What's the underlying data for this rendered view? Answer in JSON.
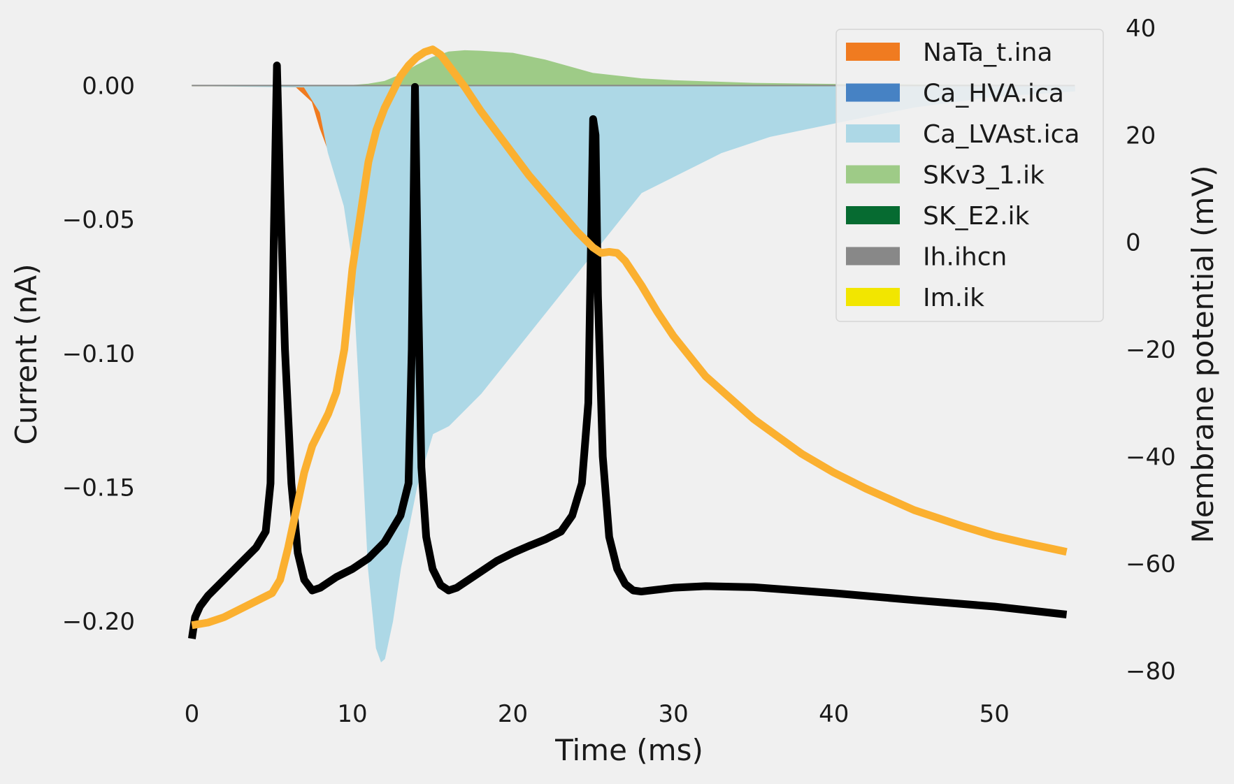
{
  "chart_data": {
    "type": "area",
    "title": "",
    "xlabel": "Time (ms)",
    "ylabel": "Current (nA)",
    "ylabel_right": "Membrane potential (mV)",
    "xlim": [
      -1.5,
      56
    ],
    "ylim": [
      -0.2185,
      0.0215
    ],
    "ylim_right": [
      -80,
      40
    ],
    "x_ticks": [
      "0",
      "10",
      "20",
      "30",
      "40",
      "50"
    ],
    "x_tick_values": [
      0,
      10,
      20,
      30,
      40,
      50
    ],
    "y_ticks": [
      "0.00",
      "−0.05",
      "−0.10",
      "−0.15",
      "−0.20"
    ],
    "y_tick_values": [
      0,
      -0.05,
      -0.1,
      -0.15,
      -0.2
    ],
    "y_right_ticks": [
      "40",
      "20",
      "0",
      "−20",
      "−40",
      "−60",
      "−80"
    ],
    "y_right_tick_values": [
      40,
      20,
      0,
      -20,
      -40,
      -60,
      -80
    ],
    "grid": false,
    "legend_position": "top-right",
    "series": [
      {
        "name": "NaTa_t.ina",
        "kind": "area",
        "color": "#f07b20",
        "x": [
          0,
          5,
          6.5,
          7.5,
          8,
          8.5,
          9,
          10,
          11,
          12,
          13,
          15,
          20,
          30,
          40,
          45,
          50,
          55
        ],
        "y": [
          0,
          0,
          -0.0005,
          -0.006,
          -0.016,
          -0.024,
          -0.02,
          -0.01,
          -0.003,
          -0.0008,
          0,
          0,
          0,
          -0.001,
          -0.002,
          -0.0025,
          -0.001,
          0
        ]
      },
      {
        "name": "Ca_HVA.ica",
        "kind": "area",
        "color": "#4682c4",
        "x": [
          0,
          8,
          12,
          20,
          30,
          40,
          55
        ],
        "y": [
          0,
          0,
          -0.0002,
          -0.0003,
          -0.0002,
          -0.0001,
          0
        ]
      },
      {
        "name": "Ca_LVAst.ica",
        "kind": "area",
        "color": "#add8e6",
        "x": [
          0,
          7,
          8,
          8.5,
          9,
          9.5,
          10,
          10.5,
          11,
          11.5,
          11.8,
          12,
          12.5,
          13,
          14,
          15,
          16,
          18,
          20,
          22,
          24,
          26,
          28,
          30,
          33,
          36,
          40,
          45,
          50,
          55
        ],
        "y": [
          0,
          -0.0005,
          -0.01,
          -0.025,
          -0.035,
          -0.045,
          -0.065,
          -0.12,
          -0.18,
          -0.21,
          -0.215,
          -0.214,
          -0.2,
          -0.18,
          -0.15,
          -0.13,
          -0.127,
          -0.115,
          -0.1,
          -0.085,
          -0.07,
          -0.055,
          -0.04,
          -0.034,
          -0.025,
          -0.019,
          -0.014,
          -0.008,
          -0.004,
          -0.002
        ]
      },
      {
        "name": "SKv3_1.ik",
        "kind": "area",
        "color": "#9ecb87",
        "x": [
          0,
          10,
          11,
          12,
          13,
          14,
          15,
          16,
          17,
          18,
          20,
          22,
          25,
          28,
          30,
          35,
          40,
          45,
          55
        ],
        "y": [
          0,
          0,
          0.0005,
          0.0015,
          0.004,
          0.0075,
          0.0105,
          0.0125,
          0.013,
          0.0128,
          0.012,
          0.0095,
          0.0045,
          0.0025,
          0.0018,
          0.0008,
          0.0004,
          0.0002,
          0
        ]
      },
      {
        "name": "SK_E2.ik",
        "kind": "area",
        "color": "#066b31",
        "x": [
          0,
          55
        ],
        "y": [
          0,
          0
        ]
      },
      {
        "name": "Ih.ihcn",
        "kind": "area",
        "color": "#888888",
        "x": [
          0,
          55
        ],
        "y": [
          0,
          0
        ]
      },
      {
        "name": "Im.ik",
        "kind": "area",
        "color": "#f2e600",
        "x": [
          0,
          55
        ],
        "y": [
          0,
          0
        ]
      },
      {
        "name": "",
        "kind": "line",
        "axis": "right",
        "color": "#000000",
        "x": [
          0,
          0.2,
          0.5,
          1,
          2,
          3,
          4,
          4.6,
          4.9,
          5.1,
          5.3,
          5.5,
          5.8,
          6.2,
          6.6,
          7,
          7.5,
          8,
          9,
          10,
          11,
          12,
          13,
          13.5,
          13.7,
          13.9,
          14.1,
          14.3,
          14.6,
          15,
          15.5,
          16,
          16.5,
          17,
          18,
          19,
          20,
          21,
          22,
          23,
          23.7,
          24.3,
          24.7,
          25,
          25.15,
          25.3,
          25.6,
          26,
          26.5,
          27,
          27.5,
          28,
          30,
          32,
          35,
          40,
          45,
          50,
          54.5
        ],
        "y": [
          -74,
          -70,
          -68,
          -66,
          -63,
          -60,
          -57,
          -54,
          -45,
          0,
          33,
          10,
          -20,
          -45,
          -58,
          -63,
          -65,
          -64.5,
          -62.5,
          -61,
          -59,
          -56,
          -51,
          -45,
          -20,
          29,
          -10,
          -42,
          -55,
          -61,
          -64,
          -65,
          -64.5,
          -63.5,
          -61.5,
          -59.5,
          -58,
          -56.7,
          -55.5,
          -54,
          -51,
          -45,
          -30,
          23,
          20,
          -10,
          -40,
          -55,
          -61,
          -63.8,
          -65,
          -65.2,
          -64.5,
          -64.2,
          -64.4,
          -65.5,
          -66.8,
          -68,
          -69.5
        ]
      },
      {
        "name": "",
        "kind": "line",
        "axis": "right",
        "color": "#fbb030",
        "x": [
          0,
          1,
          2,
          3,
          4,
          5,
          5.5,
          6,
          6.5,
          7,
          7.5,
          8,
          8.5,
          9,
          9.5,
          10,
          10.5,
          11,
          11.5,
          12,
          12.5,
          13,
          13.5,
          14,
          14.5,
          15,
          15.5,
          16,
          17,
          18,
          19,
          20,
          21,
          22,
          23,
          24,
          25,
          25.5,
          26,
          26.5,
          27,
          28,
          29,
          30,
          32,
          35,
          38,
          40,
          42,
          45,
          48,
          50,
          52,
          54.5
        ],
        "y": [
          -71.5,
          -71,
          -70,
          -68.5,
          -67,
          -65.5,
          -63,
          -57,
          -50,
          -43,
          -38,
          -35,
          -32,
          -28,
          -20,
          -5,
          5,
          15,
          21,
          25,
          28,
          31,
          33,
          34.5,
          35.5,
          36,
          35,
          33,
          29,
          24.5,
          20.5,
          16.5,
          12.5,
          9,
          5.5,
          2,
          -1,
          -2,
          -1.8,
          -2,
          -3.5,
          -8,
          -13,
          -17.5,
          -25,
          -33,
          -39.5,
          -43,
          -46,
          -50,
          -53,
          -54.8,
          -56.2,
          -57.8
        ]
      }
    ]
  }
}
